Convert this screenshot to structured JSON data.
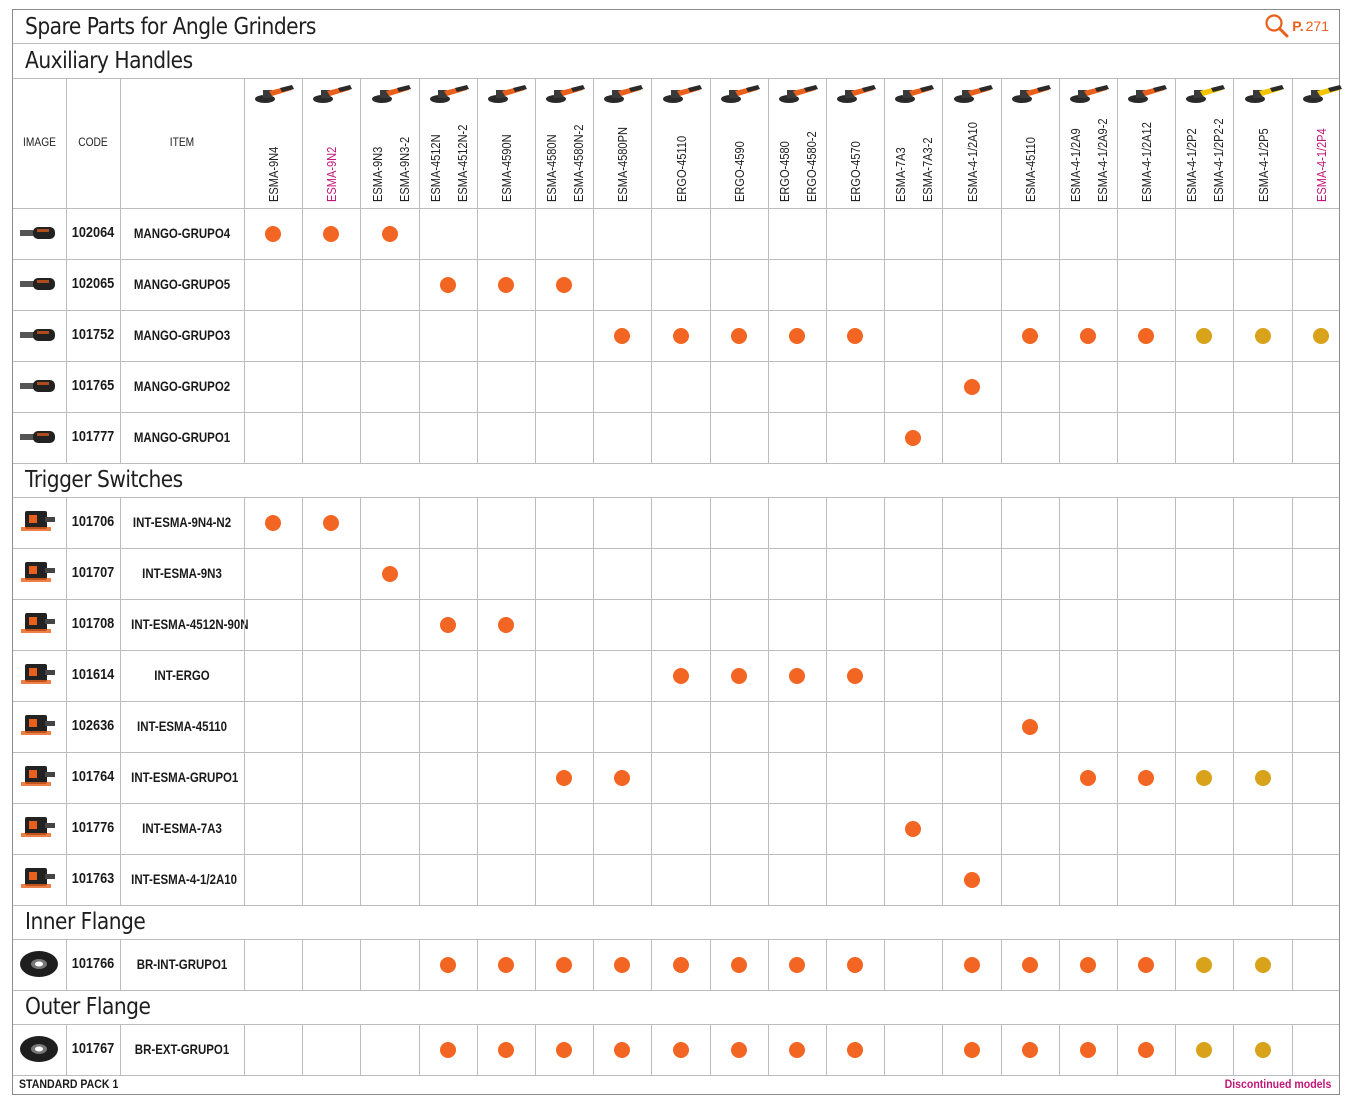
{
  "page": {
    "title": "Spare Parts for Angle Grinders",
    "page_ref_label": "P.",
    "page_ref_number": "271",
    "search_icon": "magnifier-icon",
    "footer_left": "STANDARD PACK 1",
    "footer_right": "Discontinued models"
  },
  "colors": {
    "standard_dot": "#f26522",
    "discontinued_dot": "#d8a21a",
    "discontinued_text": "#c2187a",
    "accent": "#e8601c"
  },
  "header": {
    "image": "IMAGE",
    "code": "CODE",
    "item": "ITEM"
  },
  "columns": [
    {
      "labels": [
        "ESMA-9N4"
      ],
      "discontinued": false,
      "tool_color": "orange"
    },
    {
      "labels": [
        "ESMA-9N2"
      ],
      "discontinued": true,
      "tool_color": "orange"
    },
    {
      "labels": [
        "ESMA-9N3",
        "ESMA-9N3-2"
      ],
      "discontinued": false,
      "tool_color": "orange"
    },
    {
      "labels": [
        "ESMA-4512N",
        "ESMA-4512N-2"
      ],
      "discontinued": false,
      "tool_color": "orange"
    },
    {
      "labels": [
        "ESMA-4590N"
      ],
      "discontinued": false,
      "tool_color": "orange"
    },
    {
      "labels": [
        "ESMA-4580N",
        "ESMA-4580N-2"
      ],
      "discontinued": false,
      "tool_color": "orange"
    },
    {
      "labels": [
        "ESMA-4580PN"
      ],
      "discontinued": false,
      "tool_color": "orange"
    },
    {
      "labels": [
        "ERGO-45110"
      ],
      "discontinued": false,
      "tool_color": "orange"
    },
    {
      "labels": [
        "ERGO-4590"
      ],
      "discontinued": false,
      "tool_color": "orange"
    },
    {
      "labels": [
        "ERGO-4580",
        "ERGO-4580-2"
      ],
      "discontinued": false,
      "tool_color": "orange"
    },
    {
      "labels": [
        "ERGO-4570"
      ],
      "discontinued": false,
      "tool_color": "orange"
    },
    {
      "labels": [
        "ESMA-7A3",
        "ESMA-7A3-2"
      ],
      "discontinued": false,
      "tool_color": "orange"
    },
    {
      "labels": [
        "ESMA-4-1/2A10"
      ],
      "discontinued": false,
      "tool_color": "orange"
    },
    {
      "labels": [
        "ESMA-45110"
      ],
      "discontinued": false,
      "tool_color": "orange"
    },
    {
      "labels": [
        "ESMA-4-1/2A9",
        "ESMA-4-1/2A9-2"
      ],
      "discontinued": false,
      "tool_color": "orange"
    },
    {
      "labels": [
        "ESMA-4-1/2A12"
      ],
      "discontinued": false,
      "tool_color": "orange"
    },
    {
      "labels": [
        "ESMA-4-1/2P2",
        "ESMA-4-1/2P2-2"
      ],
      "discontinued": false,
      "tool_color": "yellow"
    },
    {
      "labels": [
        "ESMA-4-1/2P5"
      ],
      "discontinued": false,
      "tool_color": "yellow"
    },
    {
      "labels": [
        "ESMA-4-1/2P4"
      ],
      "discontinued": true,
      "tool_color": "yellow"
    }
  ],
  "sections": [
    {
      "title": "Auxiliary Handles",
      "rows": [
        {
          "image": "handle-icon",
          "code": "102064",
          "item": "MANGO-GRUPO4",
          "marks": {
            "0": "s",
            "1": "s",
            "2": "s"
          }
        },
        {
          "image": "handle-icon",
          "code": "102065",
          "item": "MANGO-GRUPO5",
          "marks": {
            "3": "s",
            "4": "s",
            "5": "s"
          }
        },
        {
          "image": "handle-icon",
          "code": "101752",
          "item": "MANGO-GRUPO3",
          "marks": {
            "6": "s",
            "7": "s",
            "8": "s",
            "9": "s",
            "10": "s",
            "13": "s",
            "14": "s",
            "15": "s",
            "16": "d",
            "17": "d",
            "18": "d"
          }
        },
        {
          "image": "handle-icon",
          "code": "101765",
          "item": "MANGO-GRUPO2",
          "marks": {
            "12": "s"
          }
        },
        {
          "image": "handle-icon",
          "code": "101777",
          "item": "MANGO-GRUPO1",
          "marks": {
            "11": "s"
          }
        }
      ]
    },
    {
      "title": "Trigger Switches",
      "rows": [
        {
          "image": "switch-icon",
          "code": "101706",
          "item": "INT-ESMA-9N4-N2",
          "marks": {
            "0": "s",
            "1": "s"
          }
        },
        {
          "image": "switch-icon",
          "code": "101707",
          "item": "INT-ESMA-9N3",
          "marks": {
            "2": "s"
          }
        },
        {
          "image": "switch-icon",
          "code": "101708",
          "item": "INT-ESMA-4512N-90N",
          "marks": {
            "3": "s",
            "4": "s"
          }
        },
        {
          "image": "switch-icon",
          "code": "101614",
          "item": "INT-ERGO",
          "marks": {
            "7": "s",
            "8": "s",
            "9": "s",
            "10": "s"
          }
        },
        {
          "image": "switch-icon",
          "code": "102636",
          "item": "INT-ESMA-45110",
          "marks": {
            "13": "s"
          }
        },
        {
          "image": "switch-icon",
          "code": "101764",
          "item": "INT-ESMA-GRUPO1",
          "marks": {
            "5": "s",
            "6": "s",
            "14": "s",
            "15": "s",
            "16": "d",
            "17": "d"
          }
        },
        {
          "image": "switch-icon",
          "code": "101776",
          "item": "INT-ESMA-7A3",
          "marks": {
            "11": "s"
          }
        },
        {
          "image": "switch-icon",
          "code": "101763",
          "item": "INT-ESMA-4-1/2A10",
          "marks": {
            "12": "s"
          }
        }
      ]
    },
    {
      "title": "Inner Flange",
      "rows": [
        {
          "image": "flange-icon",
          "code": "101766",
          "item": "BR-INT-GRUPO1",
          "marks": {
            "3": "s",
            "4": "s",
            "5": "s",
            "6": "s",
            "7": "s",
            "8": "s",
            "9": "s",
            "10": "s",
            "12": "s",
            "13": "s",
            "14": "s",
            "15": "s",
            "16": "d",
            "17": "d"
          }
        }
      ]
    },
    {
      "title": "Outer Flange",
      "rows": [
        {
          "image": "flange-icon",
          "code": "101767",
          "item": "BR-EXT-GRUPO1",
          "marks": {
            "3": "s",
            "4": "s",
            "5": "s",
            "6": "s",
            "7": "s",
            "8": "s",
            "9": "s",
            "10": "s",
            "12": "s",
            "13": "s",
            "14": "s",
            "15": "s",
            "16": "d",
            "17": "d"
          }
        }
      ]
    }
  ]
}
